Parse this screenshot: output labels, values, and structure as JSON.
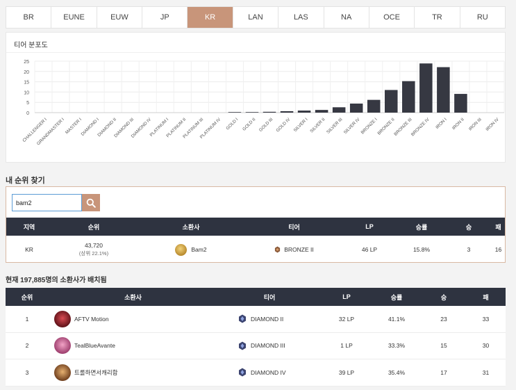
{
  "regions": [
    "BR",
    "EUNE",
    "EUW",
    "JP",
    "KR",
    "LAN",
    "LAS",
    "NA",
    "OCE",
    "TR",
    "RU"
  ],
  "active_region": "KR",
  "distribution": {
    "title": "티어 분포도"
  },
  "chart_data": {
    "type": "bar",
    "title": "티어 분포도",
    "categories": [
      "CHALLENGER I",
      "GRANDMASTER I",
      "MASTER I",
      "DIAMOND I",
      "DIAMOND II",
      "DIAMOND III",
      "DIAMOND IV",
      "PLATINUM I",
      "PLATINUM II",
      "PLATINUM III",
      "PLATINUM IV",
      "GOLD I",
      "GOLD II",
      "GOLD III",
      "GOLD IV",
      "SILVER I",
      "SILVER II",
      "SILVER III",
      "SILVER IV",
      "BRONZE I",
      "BRONZE II",
      "BRONZE III",
      "BRONZE IV",
      "IRON I",
      "IRON II",
      "IRON III",
      "IRON IV"
    ],
    "values": [
      0,
      0,
      0,
      0,
      0,
      0,
      0,
      0,
      0,
      0,
      0,
      0.1,
      0.2,
      0.4,
      0.7,
      1.0,
      1.3,
      2.6,
      4.4,
      6.2,
      11.0,
      15.3,
      23.9,
      22.1,
      9.1,
      0,
      0
    ],
    "ylim": [
      0,
      25
    ],
    "yticks": [
      0,
      5,
      10,
      15,
      20,
      25
    ],
    "grid": true,
    "color": "#363842"
  },
  "find_rank": {
    "title": "내 순위 찾기",
    "search_value": "bam2",
    "columns": [
      "지역",
      "순위",
      "소환사",
      "티어",
      "LP",
      "승률",
      "승",
      "패"
    ],
    "result": {
      "region": "KR",
      "rank": "43,720",
      "rank_pct": "(상위 22.1%)",
      "name": "Bam2",
      "tier": "BRONZE II",
      "lp": "46 LP",
      "winrate": "15.8%",
      "wins": "3",
      "losses": "16"
    }
  },
  "ranking": {
    "title": "현재 197,885명의 소환사가 배치됨",
    "columns": [
      "순위",
      "소환사",
      "티어",
      "LP",
      "승률",
      "승",
      "패"
    ],
    "rows": [
      {
        "rank": "1",
        "name": "AFTV Motion",
        "tier": "DIAMOND II",
        "lp": "32 LP",
        "winrate": "41.1%",
        "wins": "23",
        "losses": "33",
        "avatar_color": "#b8303a"
      },
      {
        "rank": "2",
        "name": "TealBlueAvante",
        "tier": "DIAMOND III",
        "lp": "1 LP",
        "winrate": "33.3%",
        "wins": "15",
        "losses": "30",
        "avatar_color": "#d36a9a"
      },
      {
        "rank": "3",
        "name": "트롤하면서캐리함",
        "tier": "DIAMOND IV",
        "lp": "39 LP",
        "winrate": "35.4%",
        "wins": "17",
        "losses": "31",
        "avatar_color": "#c9823d"
      }
    ]
  }
}
